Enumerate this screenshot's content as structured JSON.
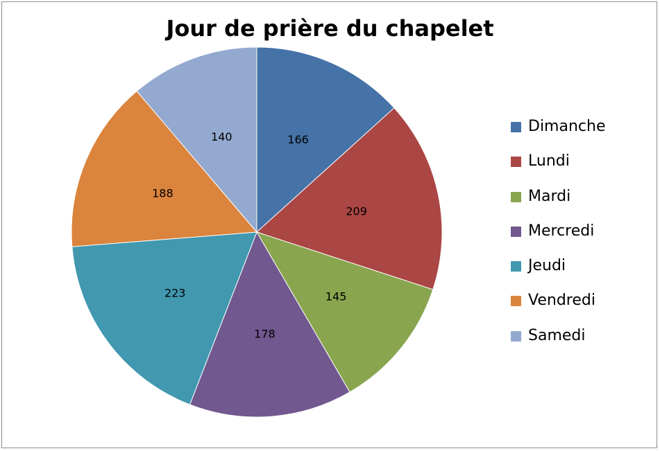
{
  "chart_data": {
    "type": "pie",
    "title": "Jour de prière du chapelet",
    "categories": [
      "Dimanche",
      "Lundi",
      "Mardi",
      "Mercredi",
      "Jeudi",
      "Vendredi",
      "Samedi"
    ],
    "values": [
      166,
      209,
      145,
      178,
      223,
      188,
      140
    ],
    "colors": [
      "#4572a7",
      "#aa4643",
      "#89a54e",
      "#71588f",
      "#4198af",
      "#db843d",
      "#93a9cf"
    ],
    "start_angle_deg": 0,
    "direction": "clockwise",
    "legend_position": "right",
    "data_labels": "values"
  }
}
